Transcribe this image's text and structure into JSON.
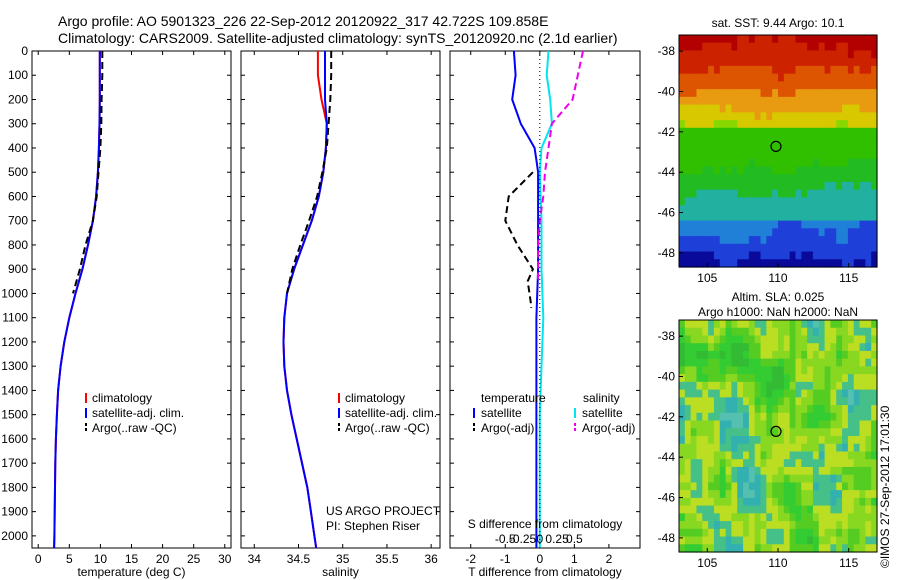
{
  "header": {
    "line1": "Argo profile: AO 5901323_226 22-Sep-2012 20120922_317 42.722S 109.858E",
    "line2": "Climatology: CARS2009. Satellite-adjusted climatology: synTS_20120920.nc (2.1d earlier)"
  },
  "colors": {
    "climatology": "#ff0000",
    "satellite": "#0000ff",
    "argo": "#000000",
    "sal_satellite": "#00e5ee",
    "sal_argo": "#ee00ee"
  },
  "chart_data": [
    {
      "type": "line",
      "name": "temperature-profile",
      "xlabel": "temperature (deg C)",
      "xlim": [
        -1,
        31
      ],
      "ylim": [
        0,
        2050
      ],
      "x_ticks": [
        0,
        5,
        10,
        15,
        20,
        25,
        30
      ],
      "y_ticks": [
        0,
        100,
        200,
        300,
        400,
        500,
        600,
        700,
        800,
        900,
        1000,
        1100,
        1200,
        1300,
        1400,
        1500,
        1600,
        1700,
        1800,
        1900,
        2000
      ],
      "y_inverted": true,
      "legend": [
        "climatology",
        "satellite-adj. clim.",
        "Argo(..raw -QC)"
      ],
      "series": [
        {
          "name": "climatology",
          "x": [
            9.9,
            9.9,
            9.9,
            9.85,
            9.75,
            9.6,
            9.3,
            8.8,
            8.0,
            7.1,
            6.0,
            5.0,
            4.2,
            3.6,
            3.2,
            3.0,
            2.85,
            2.75,
            2.7,
            2.65,
            2.6,
            2.55
          ],
          "y": [
            0,
            100,
            200,
            300,
            400,
            500,
            600,
            700,
            800,
            900,
            1000,
            1100,
            1200,
            1300,
            1400,
            1500,
            1600,
            1700,
            1800,
            1900,
            2000,
            2050
          ]
        },
        {
          "name": "satellite-adj. clim.",
          "x": [
            9.9,
            9.9,
            9.9,
            9.85,
            9.75,
            9.6,
            9.3,
            8.8,
            8.0,
            7.1,
            6.0,
            5.0,
            4.2,
            3.6,
            3.2,
            3.0,
            2.85,
            2.75,
            2.7,
            2.65,
            2.6,
            2.55
          ],
          "y": [
            0,
            100,
            200,
            300,
            400,
            500,
            600,
            700,
            800,
            900,
            1000,
            1100,
            1200,
            1300,
            1400,
            1500,
            1600,
            1700,
            1800,
            1900,
            2000,
            2050
          ]
        },
        {
          "name": "Argo(..raw -QC)",
          "x": [
            10.3,
            10.3,
            10.2,
            10.15,
            10.0,
            9.7,
            9.4,
            8.8,
            7.6,
            6.7,
            5.6
          ],
          "y": [
            0,
            100,
            200,
            300,
            400,
            500,
            600,
            700,
            800,
            900,
            1000
          ]
        }
      ]
    },
    {
      "type": "line",
      "name": "salinity-profile",
      "xlabel": "salinity",
      "xlim": [
        33.85,
        36.1
      ],
      "ylim": [
        0,
        2050
      ],
      "x_ticks": [
        34,
        34.5,
        35,
        35.5,
        36
      ],
      "y_inverted": true,
      "legend": [
        "climatology",
        "satellite-adj. clim.",
        "Argo(..raw -QC)"
      ],
      "annotation": [
        "US ARGO PROJECT",
        "PI: Stephen Riser"
      ],
      "series": [
        {
          "name": "climatology",
          "x": [
            34.72,
            34.72,
            34.76,
            34.82,
            34.81,
            34.78,
            34.73,
            34.65,
            34.55,
            34.45,
            34.37,
            34.34,
            34.33,
            34.34,
            34.37,
            34.42,
            34.48,
            34.54,
            34.6,
            34.64,
            34.68,
            34.7
          ],
          "y": [
            0,
            100,
            200,
            300,
            400,
            500,
            600,
            700,
            800,
            900,
            1000,
            1100,
            1200,
            1300,
            1400,
            1500,
            1600,
            1700,
            1800,
            1900,
            2000,
            2050
          ]
        },
        {
          "name": "satellite-adj. clim.",
          "x": [
            34.8,
            34.8,
            34.8,
            34.82,
            34.81,
            34.78,
            34.73,
            34.65,
            34.55,
            34.45,
            34.37,
            34.34,
            34.33,
            34.34,
            34.37,
            34.42,
            34.48,
            34.54,
            34.6,
            34.64,
            34.68,
            34.7
          ],
          "y": [
            0,
            100,
            200,
            300,
            400,
            500,
            600,
            700,
            800,
            900,
            1000,
            1100,
            1200,
            1300,
            1400,
            1500,
            1600,
            1700,
            1800,
            1900,
            2000,
            2050
          ]
        },
        {
          "name": "Argo(..raw -QC)",
          "x": [
            34.87,
            34.87,
            34.86,
            34.84,
            34.82,
            34.77,
            34.71,
            34.62,
            34.52,
            34.43,
            34.37
          ],
          "y": [
            0,
            100,
            200,
            300,
            400,
            500,
            600,
            700,
            800,
            900,
            1000
          ]
        }
      ]
    },
    {
      "type": "line",
      "name": "difference-profile",
      "xlabel": "T difference from climatology",
      "xlabel_top": "S difference from climatology",
      "xlim": [
        -2.6,
        2.9
      ],
      "ylim": [
        0,
        2050
      ],
      "x_ticks": [
        -2,
        -1,
        0,
        1,
        2
      ],
      "x_ticks_top": [
        "-0.5",
        "-0.25",
        "0",
        "0.25",
        "0.5"
      ],
      "y_inverted": true,
      "legend_left_title": "temperature",
      "legend_right_title": "salinity",
      "legend": [
        "satellite",
        "Argo(-adj)",
        "satellite",
        "Argo(-adj)"
      ],
      "series": [
        {
          "name": "satellite",
          "group": "temperature",
          "x": [
            -0.75,
            -0.7,
            -0.8,
            -0.55,
            -0.15,
            -0.1,
            -0.05,
            -0.05,
            -0.05,
            -0.1,
            -0.1,
            -0.1,
            -0.1,
            -0.1,
            -0.1,
            -0.1,
            -0.1
          ],
          "y": [
            0,
            100,
            200,
            300,
            400,
            450,
            500,
            700,
            900,
            1100,
            1300,
            1500,
            1600,
            1700,
            1800,
            1900,
            2050
          ]
        },
        {
          "name": "Argo(-adj)",
          "group": "temperature",
          "x": [
            -0.2,
            -0.9,
            -1.0,
            -0.65,
            -0.2,
            -0.35,
            -0.3,
            -0.25,
            -0.25
          ],
          "y": [
            500,
            600,
            700,
            800,
            900,
            950,
            1000,
            1050,
            1060
          ]
        },
        {
          "name": "satellite",
          "group": "salinity",
          "x": [
            0.25,
            0.2,
            0.3,
            0.35,
            0.05,
            0.0,
            0.05,
            0.05,
            0.1,
            0.05,
            0.0,
            0.0,
            0.0,
            0.0
          ],
          "y": [
            0,
            100,
            200,
            300,
            400,
            500,
            700,
            900,
            1100,
            1300,
            1500,
            1700,
            1900,
            2050
          ]
        },
        {
          "name": "Argo(-adj)",
          "group": "salinity",
          "x": [
            1.25,
            0.95,
            0.35,
            0.25,
            0.15,
            0.1,
            0.0,
            -0.05,
            -0.05
          ],
          "y": [
            0,
            200,
            300,
            400,
            500,
            600,
            700,
            800,
            950
          ]
        }
      ]
    },
    {
      "type": "heatmap",
      "name": "sst-map",
      "title": "sat. SST: 9.44 Argo: 10.1",
      "xlim": [
        103,
        117
      ],
      "ylim": [
        -48.7,
        -37.2
      ],
      "x_ticks": [
        105,
        110,
        115
      ],
      "y_ticks": [
        -38,
        -40,
        -42,
        -44,
        -46,
        -48
      ],
      "marker": {
        "lon": 109.858,
        "lat": -42.722
      }
    },
    {
      "type": "heatmap",
      "name": "sla-map",
      "title": "Altim. SLA: 0.025",
      "subtitle": "Argo h1000: NaN h2000: NaN",
      "xlim": [
        103,
        117
      ],
      "ylim": [
        -48.7,
        -37.2
      ],
      "x_ticks": [
        105,
        110,
        115
      ],
      "y_ticks": [
        -38,
        -40,
        -42,
        -44,
        -46,
        -48
      ],
      "marker": {
        "lon": 109.858,
        "lat": -42.722
      }
    }
  ],
  "footer": {
    "stamp": "©IMOS 27-Sep-2012 17:01:30"
  }
}
